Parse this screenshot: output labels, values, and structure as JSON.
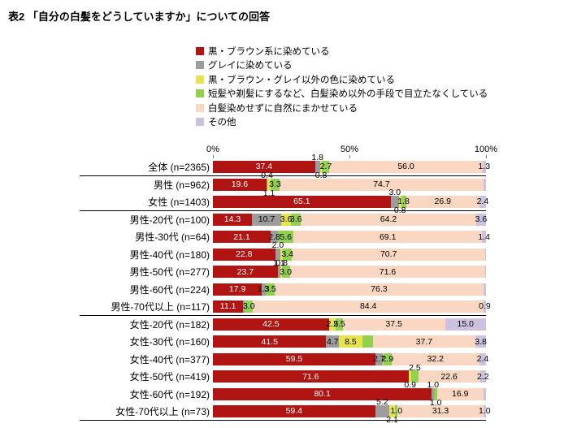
{
  "title": "表2 「自分の白髪をどうしていますか」についての回答",
  "chart_data": {
    "type": "bar",
    "stacked": true,
    "orientation": "horizontal",
    "value_unit": "%",
    "x_axis": {
      "ticks": [
        "0%",
        "50%",
        "100%"
      ],
      "min": 0,
      "max": 100
    },
    "legend_position": "top",
    "legend": [
      {
        "label": "黒・ブラウン系に染めている",
        "color": "#b01513"
      },
      {
        "label": "グレイに染めている",
        "color": "#9c9c9c"
      },
      {
        "label": "黒・ブラウン・グレイ以外の色に染めている",
        "color": "#e6e44c"
      },
      {
        "label": "短髪や剃髪にするなど、白髪染め以外の手段で目立たなくしている",
        "color": "#92d050"
      },
      {
        "label": "白髪染めせずに自然にまかせている",
        "color": "#fad7c2"
      },
      {
        "label": "その他",
        "color": "#ccc1de"
      }
    ],
    "rows": [
      {
        "label": "全体 (n=2365)",
        "group_end": true,
        "segments": [
          {
            "v": 37.4,
            "label": "37.4",
            "pos": "in"
          },
          {
            "v": 1.8,
            "label": "1.8",
            "pos": "above"
          },
          {
            "v": 0.8,
            "label": "0.8",
            "pos": "below"
          },
          {
            "v": 2.7,
            "label": "2.7",
            "pos": "in"
          },
          {
            "v": 56.0,
            "label": "56.0",
            "pos": "in"
          },
          {
            "v": 1.3,
            "label": "1.3",
            "pos": "in"
          }
        ]
      },
      {
        "label": "男性 (n=962)",
        "segments": [
          {
            "v": 19.6,
            "label": "19.6",
            "pos": "in"
          },
          {
            "v": 0.4,
            "label": "0.4",
            "pos": "above"
          },
          {
            "v": 1.1,
            "label": "1.1",
            "pos": "below"
          },
          {
            "v": 3.3,
            "label": "3.3",
            "pos": "in"
          },
          {
            "v": 74.7,
            "label": "74.7",
            "pos": "in"
          },
          {
            "v": 0.9
          }
        ]
      },
      {
        "label": "女性 (n=1403)",
        "group_end": true,
        "segments": [
          {
            "v": 65.1,
            "label": "65.1",
            "pos": "in"
          },
          {
            "v": 3.0,
            "label": "3.0",
            "pos": "above"
          },
          {
            "v": 0.8,
            "label": "0.8",
            "pos": "below"
          },
          {
            "v": 1.8,
            "label": "1.8",
            "pos": "in"
          },
          {
            "v": 26.9,
            "label": "26.9",
            "pos": "in"
          },
          {
            "v": 2.4,
            "label": "2.4",
            "pos": "in"
          }
        ]
      },
      {
        "label": "男性-20代 (n=100)",
        "segments": [
          {
            "v": 14.3,
            "label": "14.3",
            "pos": "in"
          },
          {
            "v": 10.7,
            "label": "10.7",
            "pos": "in"
          },
          {
            "v": 3.6,
            "label": "3.6",
            "pos": "in"
          },
          {
            "v": 3.6,
            "label": "3.6",
            "pos": "in"
          },
          {
            "v": 64.2,
            "label": "64.2",
            "pos": "in"
          },
          {
            "v": 3.6,
            "label": "3.6",
            "pos": "in"
          }
        ]
      },
      {
        "label": "男性-30代 (n=64)",
        "segments": [
          {
            "v": 21.1,
            "label": "21.1",
            "pos": "in"
          },
          {
            "v": 2.8,
            "label": "2.8",
            "pos": "in"
          },
          {
            "v": 0
          },
          {
            "v": 5.6,
            "label": "5.6",
            "pos": "in"
          },
          {
            "v": 69.1,
            "label": "69.1",
            "pos": "in"
          },
          {
            "v": 1.4,
            "label": "1.4",
            "pos": "in"
          }
        ]
      },
      {
        "label": "男性-40代 (n=180)",
        "segments": [
          {
            "v": 22.8,
            "label": "22.8",
            "pos": "in"
          },
          {
            "v": 2.0,
            "label": "2.0",
            "pos": "above"
          },
          {
            "v": 0.8,
            "label": "0.8",
            "pos": "below"
          },
          {
            "v": 3.4,
            "label": "3.4",
            "pos": "in"
          },
          {
            "v": 70.7,
            "label": "70.7",
            "pos": "in"
          },
          {
            "v": 0.3
          }
        ]
      },
      {
        "label": "男性-50代 (n=277)",
        "segments": [
          {
            "v": 23.7,
            "label": "23.7",
            "pos": "in"
          },
          {
            "v": 1.1,
            "label": "1.1",
            "pos": "above"
          },
          {
            "v": 0.4
          },
          {
            "v": 3.0,
            "label": "3.0",
            "pos": "in"
          },
          {
            "v": 71.6,
            "label": "71.6",
            "pos": "in"
          },
          {
            "v": 0.2
          }
        ]
      },
      {
        "label": "男性-60代 (n=224)",
        "segments": [
          {
            "v": 17.9,
            "label": "17.9",
            "pos": "in"
          },
          {
            "v": 1.3,
            "label": "1.3",
            "pos": "in"
          },
          {
            "v": 0
          },
          {
            "v": 3.5,
            "label": "3.5",
            "pos": "in"
          },
          {
            "v": 76.3,
            "label": "76.3",
            "pos": "in"
          },
          {
            "v": 1.0
          }
        ]
      },
      {
        "label": "男性-70代以上 (n=117)",
        "group_end": true,
        "segments": [
          {
            "v": 11.1,
            "label": "11.1",
            "pos": "in"
          },
          {
            "v": 0.6
          },
          {
            "v": 0
          },
          {
            "v": 3.0,
            "label": "3.0",
            "pos": "in"
          },
          {
            "v": 84.4,
            "label": "84.4",
            "pos": "in"
          },
          {
            "v": 0.9,
            "label": "0.9",
            "pos": "in"
          }
        ]
      },
      {
        "label": "女性-20代 (n=182)",
        "segments": [
          {
            "v": 42.5,
            "label": "42.5",
            "pos": "in"
          },
          {
            "v": 0
          },
          {
            "v": 2.5,
            "label": "2.5",
            "pos": "in"
          },
          {
            "v": 2.5,
            "label": "2.5",
            "pos": "in"
          },
          {
            "v": 37.5,
            "label": "37.5",
            "pos": "in"
          },
          {
            "v": 15.0,
            "label": "15.0",
            "pos": "in"
          }
        ]
      },
      {
        "label": "女性-30代 (n=160)",
        "segments": [
          {
            "v": 41.5,
            "label": "41.5",
            "pos": "in"
          },
          {
            "v": 4.7,
            "label": "4.7",
            "pos": "in"
          },
          {
            "v": 8.5,
            "label": "8.5",
            "pos": "in"
          },
          {
            "v": 3.8
          },
          {
            "v": 37.7,
            "label": "37.7",
            "pos": "in"
          },
          {
            "v": 3.8,
            "label": "3.8",
            "pos": "in"
          }
        ]
      },
      {
        "label": "女性-40代 (n=377)",
        "segments": [
          {
            "v": 59.5,
            "label": "59.5",
            "pos": "in"
          },
          {
            "v": 2.7,
            "label": "2.7",
            "pos": "in"
          },
          {
            "v": 0.3
          },
          {
            "v": 2.9,
            "label": "2.9",
            "pos": "in"
          },
          {
            "v": 32.2,
            "label": "32.2",
            "pos": "in"
          },
          {
            "v": 2.4,
            "label": "2.4",
            "pos": "in"
          }
        ]
      },
      {
        "label": "女性-50代 (n=419)",
        "segments": [
          {
            "v": 71.6,
            "label": "71.6",
            "pos": "in"
          },
          {
            "v": 0.2
          },
          {
            "v": 0.9,
            "label": "0.9",
            "pos": "below"
          },
          {
            "v": 2.5,
            "label": "2.5",
            "pos": "above"
          },
          {
            "v": 22.6,
            "label": "22.6",
            "pos": "in"
          },
          {
            "v": 2.2,
            "label": "2.2",
            "pos": "in"
          }
        ]
      },
      {
        "label": "女性-60代 (n=192)",
        "segments": [
          {
            "v": 80.1,
            "label": "80.1",
            "pos": "in"
          },
          {
            "v": 1.0,
            "label": "1.0",
            "pos": "above"
          },
          {
            "v": 0
          },
          {
            "v": 1.0,
            "label": "1.0",
            "pos": "below"
          },
          {
            "v": 16.9,
            "label": "16.9",
            "pos": "in"
          },
          {
            "v": 1.0
          }
        ]
      },
      {
        "label": "女性-70代以上 (n=73)",
        "group_end": true,
        "segments": [
          {
            "v": 59.4,
            "label": "59.4",
            "pos": "in"
          },
          {
            "v": 5.2,
            "label": "5.2",
            "pos": "above"
          },
          {
            "v": 2.1,
            "label": "2.1",
            "pos": "below"
          },
          {
            "v": 1.0,
            "label": "1.0",
            "pos": "in"
          },
          {
            "v": 31.3,
            "label": "31.3",
            "pos": "in"
          },
          {
            "v": 1.0,
            "label": "1.0",
            "pos": "in"
          }
        ]
      }
    ]
  }
}
